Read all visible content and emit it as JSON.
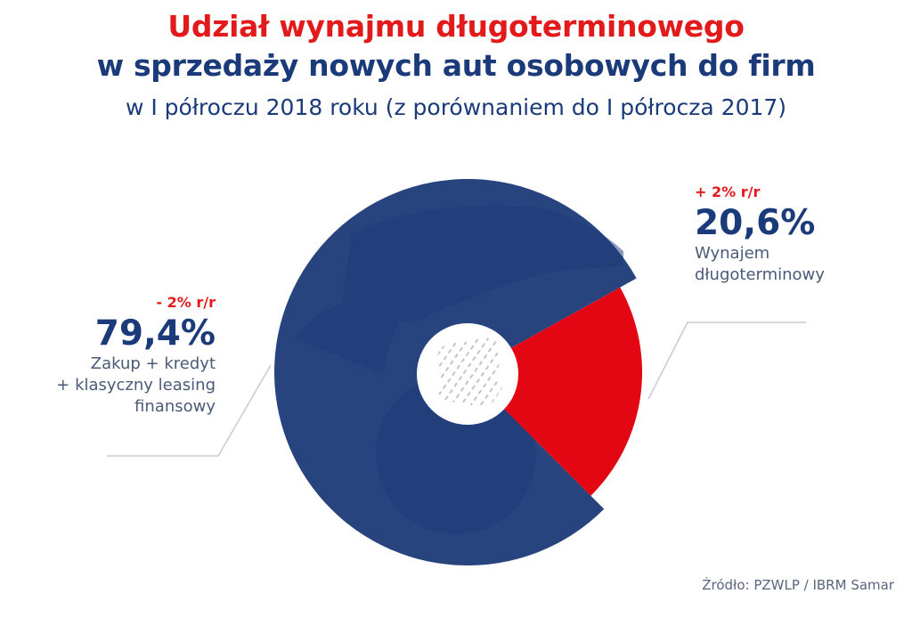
{
  "title_line1": "Udział wynajmu długoterminowego",
  "title_line2": "w sprzedaży nowych aut osobowych do firm",
  "subtitle": "w I półroczu 2018 roku (z porównaniem do I półrocza 2017)",
  "source": "Źródło: PZWLP / IBRM Samar",
  "chart_data": {
    "type": "pie",
    "title": "Udział wynajmu długoterminowego w sprzedaży nowych aut osobowych do firm",
    "subtitle": "w I półroczu 2018 roku (z porównaniem do I półrocza 2017)",
    "slices": [
      {
        "label_lines": [
          "Zakup + kredyt",
          "+ klasyczny leasing",
          "finansowy"
        ],
        "value": 79.4,
        "value_text": "79,4%",
        "change": "- 2% r/r",
        "color": "#1c3a78"
      },
      {
        "label_lines": [
          "Wynajem",
          "długoterminowy"
        ],
        "value": 20.6,
        "value_text": "20,6%",
        "change": "+ 2% r/r",
        "color": "#e30613"
      }
    ]
  },
  "colors": {
    "navy": "#1c3a78",
    "red": "#e30613",
    "title_red": "#e31a1c",
    "title_navy": "#1a3a7a"
  }
}
